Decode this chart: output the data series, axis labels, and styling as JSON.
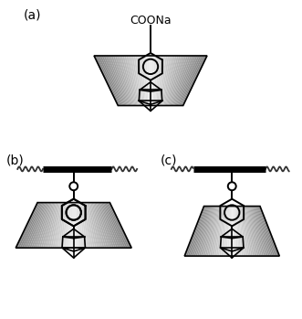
{
  "bg_color": "#ffffff",
  "label_a": "(a)",
  "label_b": "(b)",
  "label_c": "(c)",
  "cds_label": "COONa",
  "fig_w": 3.31,
  "fig_h": 3.49,
  "dpi": 100
}
